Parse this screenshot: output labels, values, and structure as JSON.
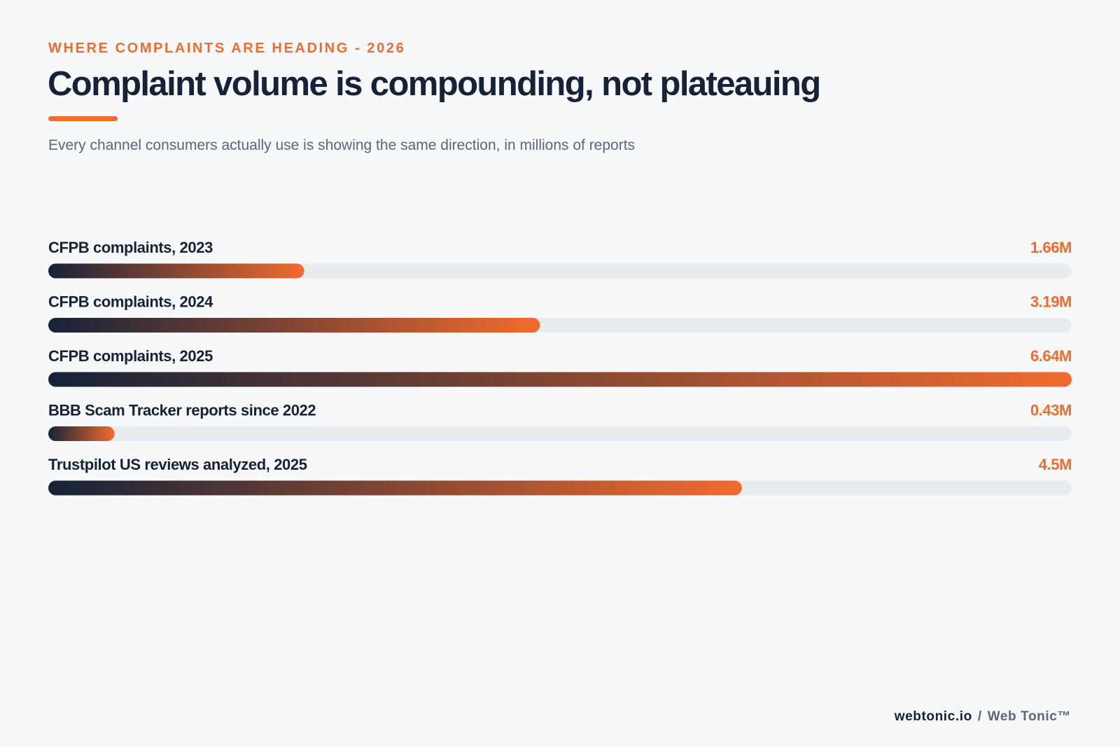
{
  "header": {
    "eyebrow": "WHERE COMPLAINTS ARE HEADING - 2026",
    "title": "Complaint volume is compounding, not plateauing",
    "subtitle": "Every channel consumers actually use is showing the same direction, in millions of reports"
  },
  "chart_data": {
    "type": "bar",
    "orientation": "horizontal",
    "title": "Complaint volume is compounding, not plateauing",
    "subtitle": "Every channel consumers actually use is showing the same direction, in millions of reports",
    "categories": [
      "CFPB complaints, 2023",
      "CFPB complaints, 2024",
      "CFPB complaints, 2025",
      "BBB Scam Tracker reports since 2022",
      "Trustpilot US reviews analyzed, 2025"
    ],
    "values": [
      1.66,
      3.19,
      6.64,
      0.43,
      4.5
    ],
    "value_labels": [
      "1.66M",
      "3.19M",
      "6.64M",
      "0.43M",
      "4.5M"
    ],
    "unit": "M",
    "xlim": [
      0,
      6.64
    ],
    "grid": false,
    "legend": "none"
  },
  "footer": {
    "site": "webtonic.io",
    "separator": "/",
    "brand": "Web Tonic™"
  },
  "colors": {
    "background": "#f6f8fa",
    "accent": "#f26b2e",
    "navy": "#152238",
    "track": "#e8ebef",
    "muted": "#5c6676"
  }
}
